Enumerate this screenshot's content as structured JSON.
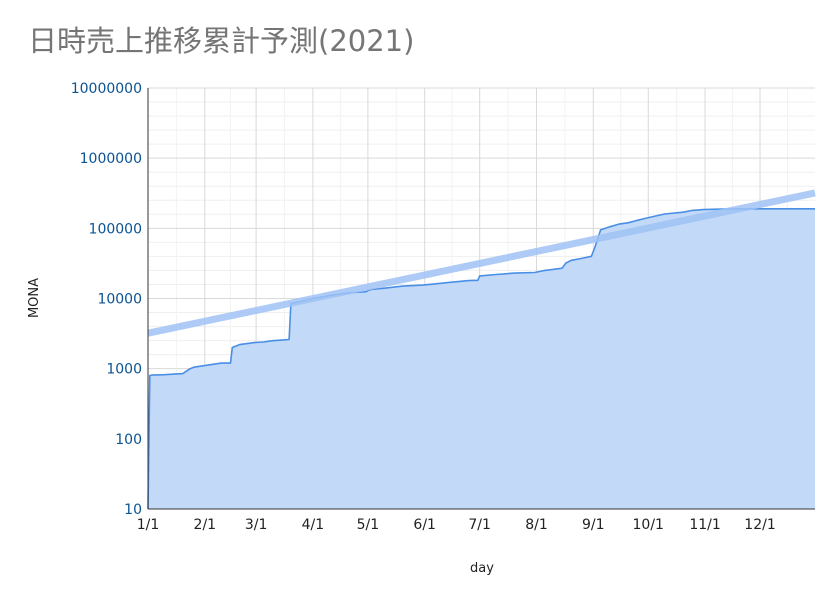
{
  "chart_data": {
    "type": "area",
    "title": "日時売上推移累計予測(2021)",
    "xlabel": "day",
    "ylabel": "MONA",
    "y_scale": "log",
    "ylim": [
      10,
      10000000
    ],
    "y_ticks": [
      "10",
      "100",
      "1000",
      "10000",
      "100000",
      "1000000",
      "10000000"
    ],
    "xlim": [
      "2021-01-01",
      "2021-12-31"
    ],
    "x_ticks": [
      "1/1",
      "2/1",
      "3/1",
      "4/1",
      "5/1",
      "6/1",
      "7/1",
      "8/1",
      "9/1",
      "10/1",
      "11/1",
      "12/1"
    ],
    "x_tick_dates": [
      "2021-01-01",
      "2021-02-01",
      "2021-03-01",
      "2021-04-01",
      "2021-05-01",
      "2021-06-01",
      "2021-07-01",
      "2021-08-01",
      "2021-09-01",
      "2021-10-01",
      "2021-11-01",
      "2021-12-01"
    ],
    "grid": true,
    "legend": "none",
    "colors": {
      "area_fill": "#c3d9f8",
      "area_line": "#4a8fe6",
      "trend": "#9fc2f5"
    },
    "series": [
      {
        "kind": "area",
        "x": [
          "2021-01-01",
          "2021-01-02",
          "2021-01-03",
          "2021-01-10",
          "2021-01-20",
          "2021-01-24",
          "2021-01-26",
          "2021-01-31",
          "2021-02-05",
          "2021-02-10",
          "2021-02-15",
          "2021-02-16",
          "2021-02-20",
          "2021-02-25",
          "2021-02-28",
          "2021-03-05",
          "2021-03-10",
          "2021-03-15",
          "2021-03-19",
          "2021-03-20",
          "2021-03-25",
          "2021-04-01",
          "2021-04-10",
          "2021-04-20",
          "2021-04-30",
          "2021-05-01",
          "2021-05-03",
          "2021-05-10",
          "2021-05-20",
          "2021-05-31",
          "2021-06-05",
          "2021-06-15",
          "2021-06-25",
          "2021-06-30",
          "2021-07-01",
          "2021-07-10",
          "2021-07-20",
          "2021-07-31",
          "2021-08-05",
          "2021-08-10",
          "2021-08-15",
          "2021-08-17",
          "2021-08-20",
          "2021-08-25",
          "2021-08-31",
          "2021-09-02",
          "2021-09-05",
          "2021-09-10",
          "2021-09-15",
          "2021-09-20",
          "2021-09-25",
          "2021-09-30",
          "2021-10-05",
          "2021-10-10",
          "2021-10-20",
          "2021-10-25",
          "2021-10-31",
          "2021-11-10",
          "2021-11-20",
          "2021-11-30",
          "2021-12-10",
          "2021-12-31"
        ],
        "values": [
          10,
          800,
          810,
          820,
          850,
          1000,
          1050,
          1100,
          1150,
          1200,
          1200,
          2000,
          2200,
          2300,
          2350,
          2400,
          2500,
          2550,
          2600,
          8500,
          9000,
          10000,
          11000,
          12000,
          12500,
          13000,
          13500,
          14000,
          15000,
          15500,
          16000,
          17000,
          18000,
          18200,
          21000,
          22000,
          23000,
          23500,
          25000,
          26000,
          27000,
          32000,
          35000,
          37000,
          40000,
          55000,
          95000,
          105000,
          115000,
          120000,
          130000,
          140000,
          150000,
          160000,
          170000,
          180000,
          185000,
          188000,
          190000,
          190000,
          190000,
          190000
        ]
      },
      {
        "kind": "trendline",
        "x": [
          "2021-01-01",
          "2021-12-31"
        ],
        "values": [
          3200,
          320000
        ]
      }
    ]
  }
}
